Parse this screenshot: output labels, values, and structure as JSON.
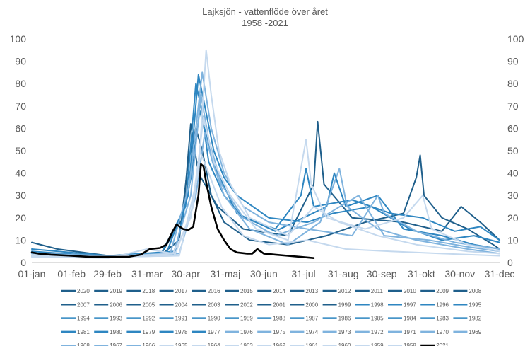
{
  "chart_data": {
    "type": "line",
    "title": "Lajksjön - vattenflöde över året",
    "subtitle": "1958 -2021",
    "xlabel": "",
    "ylabel": "",
    "ylim": [
      0,
      100
    ],
    "y_ticks": [
      "0",
      "10",
      "20",
      "30",
      "40",
      "50",
      "60",
      "70",
      "80",
      "90",
      "100"
    ],
    "y2_ticks": [
      "0",
      "10",
      "20",
      "30",
      "40",
      "50",
      "60",
      "70",
      "80",
      "90",
      "100"
    ],
    "x_range_days": [
      0,
      365
    ],
    "x_ticks": [
      {
        "day": 0,
        "label": "01-jan"
      },
      {
        "day": 31,
        "label": "01-feb"
      },
      {
        "day": 59,
        "label": "29-feb"
      },
      {
        "day": 90,
        "label": "31-mar"
      },
      {
        "day": 120,
        "label": "30-apr"
      },
      {
        "day": 151,
        "label": "31-maj"
      },
      {
        "day": 181,
        "label": "30-jun"
      },
      {
        "day": 212,
        "label": "31-jul"
      },
      {
        "day": 243,
        "label": "31-aug"
      },
      {
        "day": 273,
        "label": "30-sep"
      },
      {
        "day": 304,
        "label": "31-okt"
      },
      {
        "day": 334,
        "label": "30-nov"
      },
      {
        "day": 365,
        "label": "31-dec"
      }
    ],
    "grid": false,
    "legend_position": "bottom",
    "legend": [
      "2020",
      "2019",
      "2018",
      "2017",
      "2016",
      "2015",
      "2014",
      "2013",
      "2012",
      "2011",
      "2010",
      "2009",
      "2008",
      "2007",
      "2006",
      "2005",
      "2004",
      "2003",
      "2002",
      "2001",
      "2000",
      "1999",
      "1998",
      "1997",
      "1996",
      "1995",
      "1994",
      "1993",
      "1992",
      "1991",
      "1990",
      "1989",
      "1988",
      "1987",
      "1986",
      "1985",
      "1984",
      "1983",
      "1982",
      "1981",
      "1980",
      "1979",
      "1978",
      "1977",
      "1976",
      "1975",
      "1974",
      "1973",
      "1972",
      "1971",
      "1970",
      "1969",
      "1968",
      "1967",
      "1966",
      "1965",
      "1964",
      "1963",
      "1962",
      "1961",
      "1960",
      "1959",
      "1958",
      "2021"
    ],
    "colors": {
      "dark": "#1f5f8b",
      "mid": "#2e86c1",
      "light": "#7fb3de",
      "pale": "#c5d9ee",
      "highlight": "#000000"
    },
    "series": [
      {
        "name": "2021",
        "color": "#000000",
        "points": [
          [
            0,
            4.5
          ],
          [
            5,
            4
          ],
          [
            15,
            3.5
          ],
          [
            31,
            3
          ],
          [
            45,
            2.5
          ],
          [
            59,
            2.5
          ],
          [
            75,
            2.5
          ],
          [
            85,
            3.5
          ],
          [
            92,
            6
          ],
          [
            100,
            6.5
          ],
          [
            105,
            8
          ],
          [
            110,
            14
          ],
          [
            113,
            17
          ],
          [
            118,
            15
          ],
          [
            122,
            14.5
          ],
          [
            126,
            16
          ],
          [
            130,
            30
          ],
          [
            132,
            44
          ],
          [
            134,
            43
          ],
          [
            136,
            36
          ],
          [
            140,
            25
          ],
          [
            145,
            15
          ],
          [
            150,
            10
          ],
          [
            155,
            6
          ],
          [
            160,
            4.5
          ],
          [
            168,
            4
          ],
          [
            172,
            4
          ],
          [
            176,
            6
          ],
          [
            181,
            4
          ],
          [
            190,
            3.5
          ],
          [
            200,
            3
          ],
          [
            210,
            2.5
          ],
          [
            220,
            2
          ]
        ]
      },
      {
        "name": "2020",
        "color": "#1f5f8b",
        "points": [
          [
            0,
            3
          ],
          [
            60,
            2.5
          ],
          [
            100,
            3
          ],
          [
            115,
            10
          ],
          [
            122,
            45
          ],
          [
            128,
            60
          ],
          [
            133,
            50
          ],
          [
            140,
            30
          ],
          [
            150,
            18
          ],
          [
            170,
            10
          ],
          [
            200,
            8
          ],
          [
            230,
            12
          ],
          [
            260,
            18
          ],
          [
            290,
            22
          ],
          [
            300,
            38
          ],
          [
            303,
            48
          ],
          [
            306,
            30
          ],
          [
            320,
            20
          ],
          [
            340,
            15
          ],
          [
            360,
            8
          ],
          [
            365,
            6
          ]
        ]
      },
      {
        "name": "2015",
        "color": "#1f5f8b",
        "points": [
          [
            0,
            9
          ],
          [
            20,
            6
          ],
          [
            60,
            3
          ],
          [
            100,
            3
          ],
          [
            118,
            20
          ],
          [
            124,
            62
          ],
          [
            130,
            40
          ],
          [
            145,
            25
          ],
          [
            165,
            15
          ],
          [
            200,
            12
          ],
          [
            220,
            35
          ],
          [
            223,
            63
          ],
          [
            228,
            35
          ],
          [
            250,
            20
          ],
          [
            290,
            18
          ],
          [
            320,
            14
          ],
          [
            335,
            25
          ],
          [
            350,
            18
          ],
          [
            365,
            10
          ]
        ]
      },
      {
        "name": "2008",
        "color": "#2e86c1",
        "points": [
          [
            0,
            5
          ],
          [
            50,
            3
          ],
          [
            100,
            3
          ],
          [
            120,
            25
          ],
          [
            128,
            80
          ],
          [
            132,
            70
          ],
          [
            138,
            45
          ],
          [
            150,
            30
          ],
          [
            165,
            20
          ],
          [
            190,
            15
          ],
          [
            210,
            30
          ],
          [
            214,
            42
          ],
          [
            220,
            25
          ],
          [
            250,
            28
          ],
          [
            280,
            22
          ],
          [
            305,
            20
          ],
          [
            330,
            14
          ],
          [
            350,
            16
          ],
          [
            365,
            10
          ]
        ]
      },
      {
        "name": "1995",
        "color": "#2e86c1",
        "points": [
          [
            0,
            6
          ],
          [
            60,
            3
          ],
          [
            105,
            4
          ],
          [
            122,
            30
          ],
          [
            130,
            84
          ],
          [
            135,
            70
          ],
          [
            142,
            50
          ],
          [
            150,
            38
          ],
          [
            160,
            30
          ],
          [
            185,
            20
          ],
          [
            215,
            18
          ],
          [
            235,
            22
          ],
          [
            265,
            25
          ],
          [
            295,
            15
          ],
          [
            320,
            10
          ],
          [
            345,
            12
          ],
          [
            365,
            9
          ]
        ]
      },
      {
        "name": "1989",
        "color": "#2e86c1",
        "points": [
          [
            0,
            4
          ],
          [
            60,
            3
          ],
          [
            112,
            5
          ],
          [
            125,
            40
          ],
          [
            131,
            68
          ],
          [
            137,
            55
          ],
          [
            145,
            40
          ],
          [
            160,
            22
          ],
          [
            190,
            14
          ],
          [
            230,
            25
          ],
          [
            236,
            40
          ],
          [
            245,
            25
          ],
          [
            270,
            30
          ],
          [
            290,
            15
          ],
          [
            320,
            12
          ],
          [
            345,
            8
          ],
          [
            365,
            6
          ]
        ]
      },
      {
        "name": "1982",
        "color": "#7fb3de",
        "points": [
          [
            0,
            3
          ],
          [
            60,
            2.5
          ],
          [
            110,
            3
          ],
          [
            124,
            30
          ],
          [
            132,
            75
          ],
          [
            138,
            55
          ],
          [
            148,
            35
          ],
          [
            165,
            20
          ],
          [
            190,
            12
          ],
          [
            220,
            18
          ],
          [
            255,
            30
          ],
          [
            275,
            12
          ],
          [
            310,
            10
          ],
          [
            340,
            7
          ],
          [
            365,
            5
          ]
        ]
      },
      {
        "name": "1976",
        "color": "#7fb3de",
        "points": [
          [
            0,
            4
          ],
          [
            60,
            3
          ],
          [
            108,
            4
          ],
          [
            123,
            35
          ],
          [
            133,
            85
          ],
          [
            140,
            60
          ],
          [
            150,
            40
          ],
          [
            165,
            25
          ],
          [
            185,
            18
          ],
          [
            215,
            15
          ],
          [
            250,
            12
          ],
          [
            270,
            30
          ],
          [
            275,
            22
          ],
          [
            300,
            14
          ],
          [
            330,
            9
          ],
          [
            365,
            6
          ]
        ]
      },
      {
        "name": "1970",
        "color": "#7fb3de",
        "points": [
          [
            0,
            3
          ],
          [
            60,
            2.5
          ],
          [
            115,
            4
          ],
          [
            128,
            30
          ],
          [
            135,
            58
          ],
          [
            141,
            45
          ],
          [
            150,
            30
          ],
          [
            170,
            15
          ],
          [
            200,
            8
          ],
          [
            225,
            18
          ],
          [
            240,
            42
          ],
          [
            246,
            25
          ],
          [
            270,
            15
          ],
          [
            300,
            10
          ],
          [
            340,
            6
          ],
          [
            365,
            4
          ]
        ]
      },
      {
        "name": "1963",
        "color": "#c5d9ee",
        "points": [
          [
            0,
            3
          ],
          [
            60,
            2.5
          ],
          [
            115,
            3
          ],
          [
            130,
            40
          ],
          [
            136,
            95
          ],
          [
            140,
            75
          ],
          [
            146,
            50
          ],
          [
            155,
            35
          ],
          [
            170,
            20
          ],
          [
            200,
            12
          ],
          [
            220,
            25
          ],
          [
            240,
            18
          ],
          [
            270,
            12
          ],
          [
            300,
            8
          ],
          [
            340,
            5
          ],
          [
            365,
            4
          ]
        ]
      },
      {
        "name": "1960",
        "color": "#c5d9ee",
        "points": [
          [
            0,
            3
          ],
          [
            60,
            2.5
          ],
          [
            112,
            4
          ],
          [
            126,
            25
          ],
          [
            134,
            65
          ],
          [
            142,
            45
          ],
          [
            155,
            30
          ],
          [
            175,
            15
          ],
          [
            200,
            10
          ],
          [
            214,
            55
          ],
          [
            218,
            35
          ],
          [
            230,
            20
          ],
          [
            260,
            15
          ],
          [
            290,
            20
          ],
          [
            305,
            30
          ],
          [
            312,
            15
          ],
          [
            340,
            8
          ],
          [
            365,
            5
          ]
        ]
      },
      {
        "name": "1958",
        "color": "#c5d9ee",
        "points": [
          [
            0,
            2.5
          ],
          [
            60,
            2
          ],
          [
            90,
            6
          ],
          [
            110,
            4
          ],
          [
            124,
            20
          ],
          [
            131,
            50
          ],
          [
            138,
            40
          ],
          [
            148,
            25
          ],
          [
            165,
            12
          ],
          [
            185,
            8
          ],
          [
            215,
            10
          ],
          [
            245,
            6
          ],
          [
            280,
            5
          ],
          [
            320,
            4
          ],
          [
            365,
            3
          ]
        ]
      }
    ]
  }
}
